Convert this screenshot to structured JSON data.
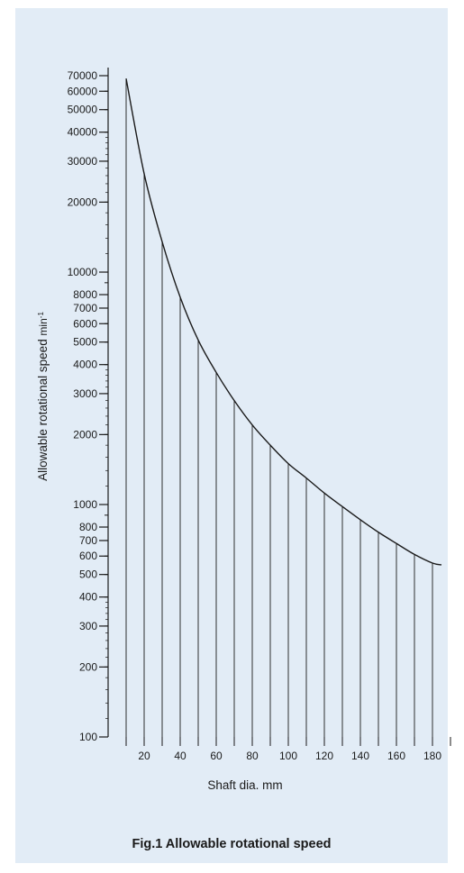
{
  "figure": {
    "caption": "Fig.1  Allowable rotational speed",
    "background_color": "#e2ecf6",
    "ink_color": "#1a1a1a"
  },
  "chart_data": {
    "type": "line",
    "title": "",
    "xlabel": "Shaft dia.  mm",
    "ylabel": "Allowable rotational speed",
    "ylabel_unit": "min",
    "ylabel_unit_exponent": "-1",
    "y_scale": "log",
    "ylim": [
      100,
      70000
    ],
    "xlim": [
      0,
      190
    ],
    "x_tick_labels": [
      "20",
      "40",
      "60",
      "80",
      "100",
      "120",
      "140",
      "160",
      "180"
    ],
    "y_tick_labels": [
      "70000",
      "60000",
      "50000",
      "40000",
      "30000",
      "20000",
      "10000",
      "8000",
      "7000",
      "6000",
      "5000",
      "4000",
      "3000",
      "2000",
      "1000",
      "800",
      "700",
      "600",
      "500",
      "400",
      "300",
      "200",
      "100"
    ],
    "series": [
      {
        "x": [
          10,
          20,
          30,
          40,
          50,
          60,
          70,
          80,
          90,
          100,
          110,
          120,
          130,
          140,
          150,
          160,
          170,
          180,
          185
        ],
        "values": [
          68000,
          26500,
          13500,
          7800,
          5100,
          3700,
          2800,
          2200,
          1800,
          1500,
          1300,
          1120,
          980,
          860,
          760,
          680,
          610,
          560,
          550
        ]
      }
    ],
    "drop_lines": true,
    "grid": false,
    "legend": "none"
  }
}
